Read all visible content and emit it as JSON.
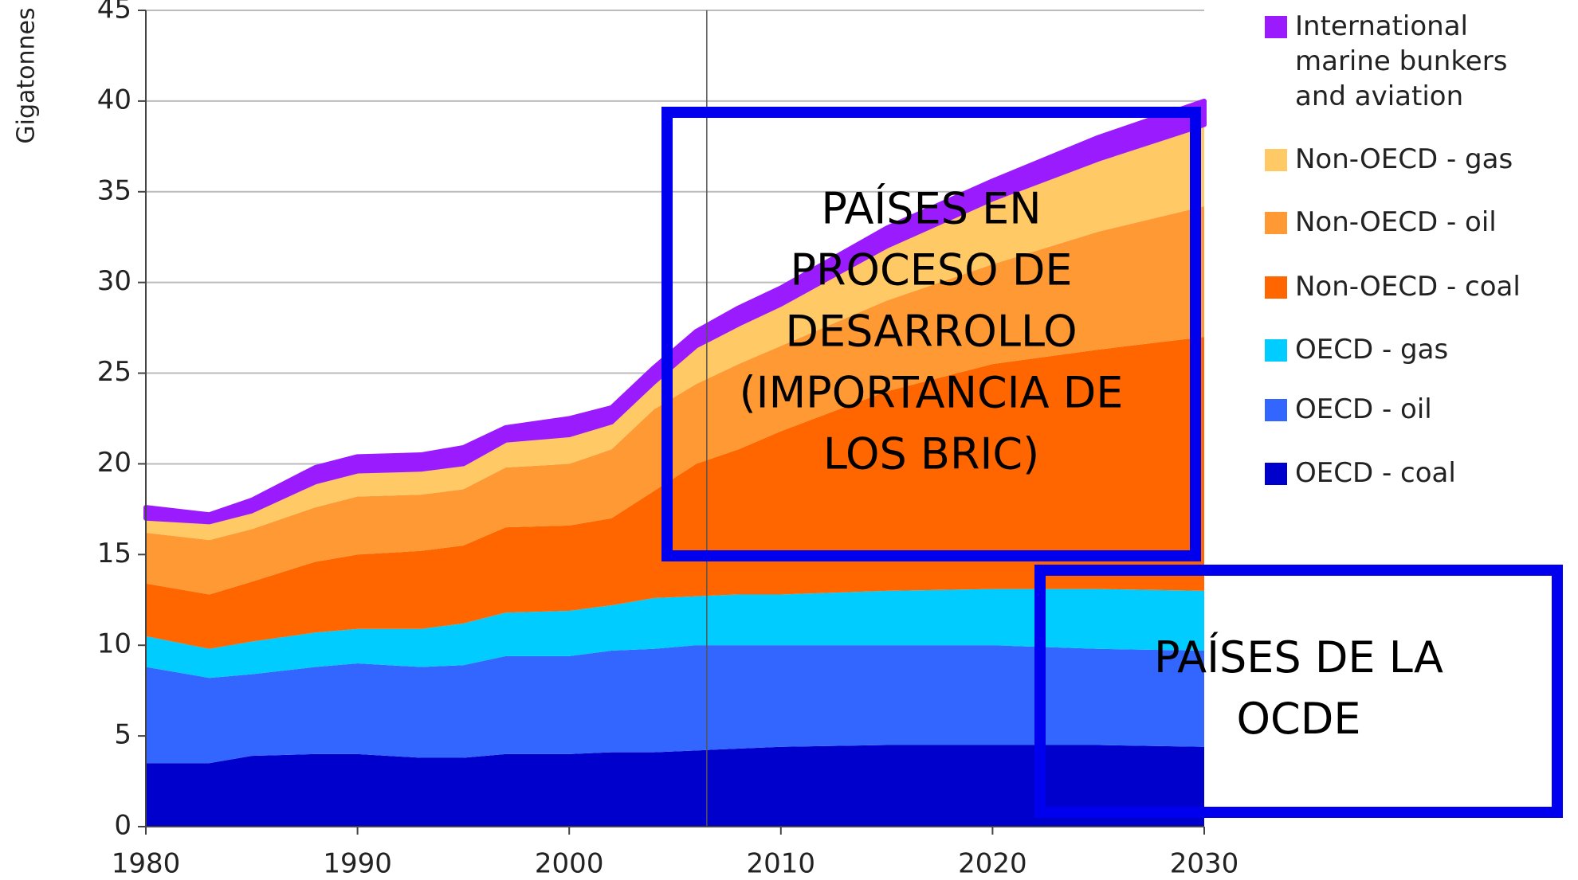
{
  "chart_data": {
    "type": "stacked_area",
    "y_label": "Gigatonnes",
    "x": [
      1980,
      1983,
      1985,
      1988,
      1990,
      1993,
      1995,
      1997,
      2000,
      2002,
      2004,
      2006,
      2008,
      2010,
      2015,
      2020,
      2025,
      2030
    ],
    "series": [
      {
        "name": "OECD - coal",
        "color": "#0000cc",
        "values": [
          3.5,
          3.5,
          3.9,
          4.0,
          4.0,
          3.8,
          3.8,
          4.0,
          4.0,
          4.1,
          4.1,
          4.2,
          4.3,
          4.4,
          4.5,
          4.5,
          4.5,
          4.4
        ]
      },
      {
        "name": "OECD - oil",
        "color": "#3366ff",
        "values": [
          5.3,
          4.7,
          4.5,
          4.8,
          5.0,
          5.0,
          5.1,
          5.4,
          5.4,
          5.6,
          5.7,
          5.8,
          5.7,
          5.6,
          5.5,
          5.5,
          5.3,
          5.3
        ]
      },
      {
        "name": "OECD - gas",
        "color": "#00ccff",
        "values": [
          1.7,
          1.6,
          1.8,
          1.9,
          1.9,
          2.1,
          2.3,
          2.4,
          2.5,
          2.5,
          2.8,
          2.7,
          2.8,
          2.8,
          3.0,
          3.1,
          3.3,
          3.3
        ]
      },
      {
        "name": "Non-OECD - coal",
        "color": "#ff6600",
        "values": [
          2.9,
          3.0,
          3.3,
          3.9,
          4.1,
          4.3,
          4.3,
          4.7,
          4.7,
          4.8,
          5.9,
          7.3,
          8.0,
          9.0,
          11.0,
          12.4,
          13.2,
          14.0
        ]
      },
      {
        "name": "Non-OECD - oil",
        "color": "#ff9933",
        "values": [
          2.8,
          3.0,
          2.9,
          3.0,
          3.2,
          3.1,
          3.1,
          3.3,
          3.4,
          3.8,
          4.5,
          4.4,
          4.7,
          4.7,
          5.0,
          5.5,
          6.5,
          7.2
        ]
      },
      {
        "name": "Non-OECD - gas",
        "color": "#ffc966",
        "values": [
          0.8,
          1.0,
          1.0,
          1.4,
          1.4,
          1.4,
          1.4,
          1.5,
          1.6,
          1.5,
          1.5,
          2.1,
          2.2,
          2.3,
          3.0,
          3.6,
          4.0,
          4.5
        ]
      },
      {
        "name": "International marine bunkers and aviation",
        "color": "#9b1bff",
        "values": [
          0.6,
          0.4,
          0.6,
          0.8,
          0.8,
          0.8,
          0.9,
          0.7,
          0.9,
          0.8,
          0.8,
          0.8,
          0.9,
          0.9,
          1.0,
          1.0,
          1.2,
          1.3
        ]
      }
    ],
    "xlim": [
      1980,
      2030
    ],
    "xticks": [
      1980,
      1990,
      2000,
      2010,
      2020,
      2030
    ],
    "ylim": [
      0,
      45
    ],
    "yticks": [
      0,
      5,
      10,
      15,
      20,
      25,
      30,
      35,
      40,
      45
    ],
    "grid": true,
    "reference_line_x": 2006.5,
    "annotations": [
      {
        "lines": [
          "PAÍSES EN",
          "PROCESO DE",
          "DESARROLLO",
          "(IMPORTANCIA DE",
          "LOS BRIC)"
        ],
        "box_color": "#0000ee"
      },
      {
        "lines": [
          "PAÍSES DE LA",
          "OCDE"
        ],
        "box_color": "#0000ee"
      }
    ]
  }
}
